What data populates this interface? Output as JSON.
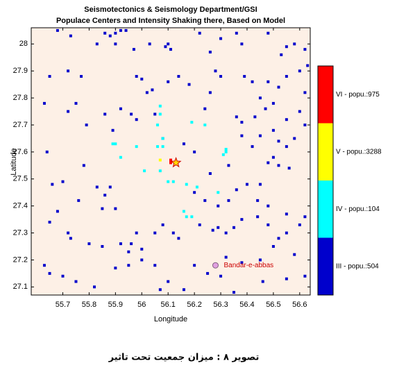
{
  "chart_data": {
    "type": "scatter",
    "title": "Seismotectonics & Seismology Department/GSI",
    "subtitle": "Populace Centers and Intensity Shaking there, Based on Model",
    "x_label": "Longitude",
    "y_label": "Latitude",
    "xlim": [
      55.58,
      56.64
    ],
    "ylim": [
      27.07,
      28.06
    ],
    "xticks": [
      55.7,
      55.8,
      55.9,
      56,
      56.1,
      56.2,
      56.3,
      56.4,
      56.5,
      56.6
    ],
    "yticks": [
      27.1,
      27.2,
      27.3,
      27.4,
      27.5,
      27.6,
      27.7,
      27.8,
      27.9,
      28
    ],
    "grid": false,
    "series": [
      {
        "name": "VI - popu.:975",
        "color": "#ff0000",
        "x": [
          56.11,
          56.11
        ],
        "values": [
          27.57,
          27.56
        ]
      },
      {
        "name": "V - popu.:3288",
        "color": "#ffff00",
        "x": [
          56.07
        ],
        "values": [
          27.57
        ]
      },
      {
        "name": "IV - popu.:104",
        "color": "#00ffff",
        "x": [
          56.07,
          56.07,
          56.06,
          56.08,
          56.08,
          56.06,
          55.98,
          55.89,
          55.9,
          55.92,
          56.01,
          56.07,
          56.12,
          56.17,
          56.21,
          56.24,
          56.19,
          56.32,
          56.32,
          56.29,
          56.16,
          56.17,
          56.19,
          56.1,
          56.31
        ],
        "values": [
          27.77,
          27.74,
          27.7,
          27.65,
          27.62,
          27.62,
          27.62,
          27.63,
          27.63,
          27.58,
          27.53,
          27.53,
          27.49,
          27.48,
          27.47,
          27.7,
          27.71,
          27.6,
          27.61,
          27.45,
          27.38,
          27.36,
          27.36,
          27.49,
          27.59
        ]
      },
      {
        "name": "III - popu.:504",
        "color": "#0000cc",
        "x": [
          55.86,
          55.88,
          55.9,
          55.92,
          55.94,
          55.83,
          55.9,
          55.97,
          56.03,
          56.09,
          56.11,
          56.1,
          56.22,
          56.26,
          56.3,
          56.36,
          56.38,
          56.48,
          56.53,
          56.55,
          56.58,
          56.62,
          55.68,
          55.73,
          55.72,
          55.65,
          55.77,
          55.98,
          56.0,
          56.04,
          56.02,
          56.1,
          56.14,
          56.18,
          56.26,
          56.3,
          56.28,
          56.39,
          56.42,
          56.48,
          56.52,
          56.55,
          56.6,
          56.63,
          56.45,
          56.47,
          56.5,
          56.43,
          56.36,
          56.38,
          56.55,
          56.6,
          56.62,
          55.63,
          55.72,
          55.75,
          55.79,
          55.86,
          55.89,
          55.92,
          55.96,
          55.98,
          56.38,
          56.42,
          56.45,
          56.5,
          56.52,
          56.55,
          56.58,
          56.62,
          56.48,
          56.5,
          56.52,
          56.56,
          55.64,
          55.66,
          55.7,
          55.83,
          55.86,
          55.88,
          55.85,
          55.9,
          55.78,
          55.76,
          55.68,
          55.65,
          55.72,
          55.73,
          55.8,
          55.85,
          55.92,
          55.95,
          55.98,
          55.96,
          56.0,
          56.05,
          56.08,
          56.12,
          56.14,
          56.22,
          56.27,
          56.29,
          56.32,
          56.35,
          56.38,
          56.44,
          56.48,
          56.52,
          56.55,
          56.6,
          56.62,
          56.44,
          56.48,
          56.55,
          56.4,
          56.45,
          56.36,
          56.33,
          56.29,
          56.24,
          56.2,
          55.63,
          55.65,
          55.7,
          55.75,
          55.82,
          55.9,
          55.95,
          56.0,
          56.05,
          56.07,
          56.1,
          56.2,
          56.25,
          56.3,
          56.32,
          56.38,
          56.45,
          56.5,
          56.58,
          56.62,
          56.55,
          56.46,
          56.35,
          56.16,
          56.08,
          56.16,
          56.2,
          56.26,
          56.33,
          56.24,
          56.05
        ],
        "values": [
          28.04,
          28.03,
          28.04,
          28.05,
          28.05,
          28.0,
          28.0,
          27.98,
          28.0,
          27.99,
          27.98,
          28.0,
          28.04,
          27.97,
          28.02,
          28.04,
          28.0,
          28.04,
          27.96,
          27.99,
          28.0,
          27.98,
          28.05,
          28.03,
          27.9,
          27.88,
          27.88,
          27.88,
          27.87,
          27.83,
          27.82,
          27.86,
          27.88,
          27.85,
          27.82,
          27.88,
          27.9,
          27.88,
          27.86,
          27.86,
          27.84,
          27.88,
          27.9,
          27.92,
          27.8,
          27.76,
          27.78,
          27.73,
          27.73,
          27.71,
          27.72,
          27.75,
          27.82,
          27.78,
          27.75,
          27.78,
          27.7,
          27.74,
          27.68,
          27.76,
          27.74,
          27.72,
          27.66,
          27.62,
          27.66,
          27.68,
          27.64,
          27.62,
          27.65,
          27.7,
          27.56,
          27.58,
          27.55,
          27.54,
          27.6,
          27.48,
          27.49,
          27.47,
          27.44,
          27.47,
          27.39,
          27.39,
          27.55,
          27.42,
          27.38,
          27.34,
          27.3,
          27.28,
          27.26,
          27.25,
          27.26,
          27.23,
          27.3,
          27.26,
          27.24,
          27.3,
          27.33,
          27.3,
          27.28,
          27.33,
          27.31,
          27.32,
          27.3,
          27.32,
          27.35,
          27.36,
          27.33,
          27.28,
          27.3,
          27.33,
          27.36,
          27.42,
          27.4,
          27.37,
          27.48,
          27.48,
          27.46,
          27.42,
          27.4,
          27.42,
          27.45,
          27.18,
          27.15,
          27.14,
          27.12,
          27.1,
          27.17,
          27.18,
          27.2,
          27.18,
          27.09,
          27.12,
          27.18,
          27.15,
          27.14,
          27.21,
          27.19,
          27.2,
          27.25,
          27.22,
          27.14,
          27.13,
          27.12,
          27.08,
          27.09,
          27.65,
          27.63,
          27.6,
          27.52,
          27.55,
          27.76,
          27.74
        ]
      }
    ],
    "epicenter": {
      "x": 56.13,
      "y": 27.56
    },
    "annotation": {
      "text": "Bandar-e-abbas",
      "x": 56.28,
      "y": 27.18
    }
  },
  "caption": "تصویر ۸ : میزان جمعیت تحت تاثیر"
}
